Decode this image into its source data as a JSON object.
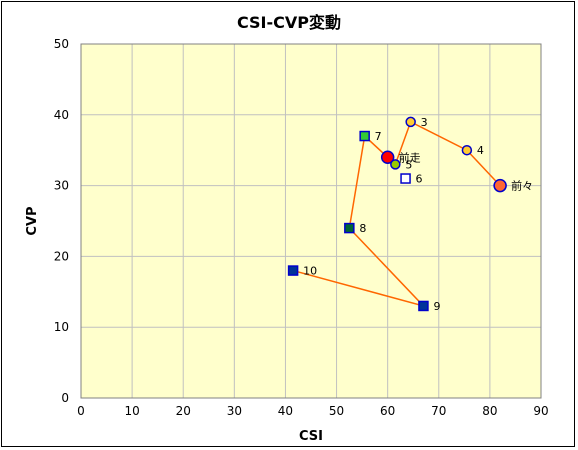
{
  "chart_data": {
    "type": "scatter",
    "title": "CSI-CVP変動",
    "xlabel": "CSI",
    "ylabel": "CVP",
    "xlim": [
      0,
      90
    ],
    "ylim": [
      0,
      50
    ],
    "xticks": [
      0,
      10,
      20,
      30,
      40,
      50,
      60,
      70,
      80,
      90
    ],
    "yticks": [
      0,
      10,
      20,
      30,
      40,
      50
    ],
    "grid": true,
    "legend": "none",
    "colors": {
      "plot_bg": "#ffffcc",
      "grid": "#c0c0c0",
      "line": "#ff6600",
      "marker_edge": "#0000cc"
    },
    "line_order": [
      "前々",
      "4",
      "3",
      "5",
      "前走",
      "7",
      "8",
      "9",
      "10"
    ],
    "points": [
      {
        "label": "前々",
        "x": 82,
        "y": 30,
        "shape": "circle",
        "fill": "#ff6633",
        "size": "large"
      },
      {
        "label": "前走",
        "x": 60,
        "y": 34,
        "shape": "circle",
        "fill": "#ff0000",
        "size": "large"
      },
      {
        "label": "3",
        "x": 64.5,
        "y": 39,
        "shape": "circle",
        "fill": "#ffcc33",
        "size": "small"
      },
      {
        "label": "4",
        "x": 75.5,
        "y": 35,
        "shape": "circle",
        "fill": "#ffcc33",
        "size": "small"
      },
      {
        "label": "5",
        "x": 61.5,
        "y": 33,
        "shape": "circle",
        "fill": "#99cc00",
        "size": "small"
      },
      {
        "label": "6",
        "x": 63.5,
        "y": 31,
        "shape": "square",
        "fill": "#ffffff",
        "size": "small"
      },
      {
        "label": "7",
        "x": 55.5,
        "y": 37,
        "shape": "square",
        "fill": "#33cc33",
        "size": "small"
      },
      {
        "label": "8",
        "x": 52.5,
        "y": 24,
        "shape": "square",
        "fill": "#006633",
        "size": "small"
      },
      {
        "label": "9",
        "x": 67,
        "y": 13,
        "shape": "square",
        "fill": "#003399",
        "size": "small"
      },
      {
        "label": "10",
        "x": 41.5,
        "y": 18,
        "shape": "square",
        "fill": "#003399",
        "size": "small"
      }
    ]
  }
}
